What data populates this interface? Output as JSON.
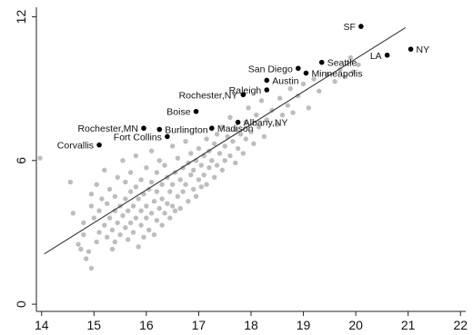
{
  "chart_data": {
    "type": "scatter",
    "title": "",
    "xlabel": "",
    "ylabel": "",
    "xlim": [
      13.9,
      22.1
    ],
    "ylim": [
      -0.3,
      12.4
    ],
    "x_ticks": [
      14,
      15,
      16,
      17,
      18,
      19,
      20,
      21,
      22
    ],
    "x_tick_labels": [
      "14",
      "15",
      "16",
      "17",
      "18",
      "19",
      "20",
      "21",
      "22"
    ],
    "y_ticks": [
      0,
      6,
      12
    ],
    "y_tick_labels": [
      "0",
      "6",
      "12"
    ],
    "grid": false,
    "fit_line": {
      "x": [
        14.05,
        20.95
      ],
      "y": [
        2.1,
        11.55
      ]
    },
    "labeled_points": [
      {
        "name": "SF",
        "x": 20.1,
        "y": 11.6
      },
      {
        "name": "NY",
        "x": 21.05,
        "y": 10.65
      },
      {
        "name": "LA",
        "x": 20.6,
        "y": 10.4
      },
      {
        "name": "Seattle",
        "x": 19.35,
        "y": 10.1
      },
      {
        "name": "San Diego",
        "x": 18.9,
        "y": 9.85
      },
      {
        "name": "Minneapolis",
        "x": 19.05,
        "y": 9.65
      },
      {
        "name": "Austin",
        "x": 18.3,
        "y": 9.35
      },
      {
        "name": "Raleigh",
        "x": 18.3,
        "y": 8.95
      },
      {
        "name": "Rochester,NY",
        "x": 17.85,
        "y": 8.75
      },
      {
        "name": "Boise",
        "x": 16.95,
        "y": 8.05
      },
      {
        "name": "Albany,NY",
        "x": 17.75,
        "y": 7.6
      },
      {
        "name": "Rochester,MN",
        "x": 15.95,
        "y": 7.35
      },
      {
        "name": "Burlington",
        "x": 16.25,
        "y": 7.3
      },
      {
        "name": "Madison",
        "x": 17.25,
        "y": 7.35
      },
      {
        "name": "Fort Collins",
        "x": 16.4,
        "y": 7.0
      },
      {
        "name": "Corvallis",
        "x": 15.1,
        "y": 6.65
      }
    ],
    "unlabeled_points": [
      [
        13.97,
        6.1
      ],
      [
        14.55,
        5.1
      ],
      [
        14.6,
        3.8
      ],
      [
        14.7,
        2.5
      ],
      [
        14.75,
        2.3
      ],
      [
        14.8,
        2.9
      ],
      [
        14.8,
        3.4
      ],
      [
        14.85,
        1.9
      ],
      [
        14.9,
        2.2
      ],
      [
        14.95,
        1.5
      ],
      [
        14.95,
        4.1
      ],
      [
        14.95,
        4.6
      ],
      [
        15.0,
        3.6
      ],
      [
        15.05,
        2.6
      ],
      [
        15.05,
        5.0
      ],
      [
        15.1,
        3.0
      ],
      [
        15.1,
        3.9
      ],
      [
        15.15,
        4.4
      ],
      [
        15.2,
        3.3
      ],
      [
        15.2,
        5.6
      ],
      [
        15.25,
        2.8
      ],
      [
        15.25,
        4.2
      ],
      [
        15.3,
        3.6
      ],
      [
        15.3,
        4.8
      ],
      [
        15.35,
        2.3
      ],
      [
        15.35,
        3.1
      ],
      [
        15.4,
        2.6
      ],
      [
        15.4,
        3.9
      ],
      [
        15.4,
        4.5
      ],
      [
        15.45,
        3.4
      ],
      [
        15.45,
        5.3
      ],
      [
        15.5,
        2.9
      ],
      [
        15.5,
        4.1
      ],
      [
        15.55,
        3.7
      ],
      [
        15.55,
        6.0
      ],
      [
        15.6,
        3.2
      ],
      [
        15.6,
        4.4
      ],
      [
        15.6,
        5.1
      ],
      [
        15.65,
        2.7
      ],
      [
        15.65,
        3.9
      ],
      [
        15.7,
        3.4
      ],
      [
        15.7,
        4.7
      ],
      [
        15.7,
        5.5
      ],
      [
        15.75,
        3.0
      ],
      [
        15.75,
        4.1
      ],
      [
        15.8,
        3.6
      ],
      [
        15.8,
        4.9
      ],
      [
        15.8,
        6.2
      ],
      [
        15.85,
        2.4
      ],
      [
        15.85,
        4.4
      ],
      [
        15.9,
        3.3
      ],
      [
        15.9,
        3.9
      ],
      [
        15.9,
        5.2
      ],
      [
        15.95,
        4.6
      ],
      [
        15.95,
        2.8
      ],
      [
        16.0,
        3.6
      ],
      [
        16.0,
        4.1
      ],
      [
        16.0,
        5.7
      ],
      [
        16.05,
        3.1
      ],
      [
        16.05,
        4.8
      ],
      [
        16.1,
        3.8
      ],
      [
        16.1,
        5.1
      ],
      [
        16.1,
        6.4
      ],
      [
        16.15,
        4.3
      ],
      [
        16.15,
        2.9
      ],
      [
        16.2,
        3.5
      ],
      [
        16.2,
        4.7
      ],
      [
        16.2,
        5.5
      ],
      [
        16.25,
        4.0
      ],
      [
        16.25,
        6.0
      ],
      [
        16.3,
        3.3
      ],
      [
        16.3,
        4.4
      ],
      [
        16.3,
        5.0
      ],
      [
        16.35,
        5.8
      ],
      [
        16.35,
        3.8
      ],
      [
        16.4,
        4.2
      ],
      [
        16.4,
        5.3
      ],
      [
        16.45,
        4.7
      ],
      [
        16.45,
        3.6
      ],
      [
        16.5,
        5.0
      ],
      [
        16.5,
        6.6
      ],
      [
        16.5,
        4.1
      ],
      [
        16.55,
        5.5
      ],
      [
        16.55,
        3.9
      ],
      [
        16.6,
        4.5
      ],
      [
        16.6,
        6.1
      ],
      [
        16.65,
        5.2
      ],
      [
        16.65,
        4.0
      ],
      [
        16.7,
        5.7
      ],
      [
        16.7,
        4.7
      ],
      [
        16.75,
        6.8
      ],
      [
        16.75,
        5.0
      ],
      [
        16.8,
        4.3
      ],
      [
        16.8,
        5.9
      ],
      [
        16.85,
        5.4
      ],
      [
        16.85,
        6.3
      ],
      [
        16.9,
        4.8
      ],
      [
        16.9,
        5.6
      ],
      [
        16.95,
        6.0
      ],
      [
        16.95,
        4.5
      ],
      [
        17.0,
        5.2
      ],
      [
        17.0,
        6.5
      ],
      [
        17.05,
        5.8
      ],
      [
        17.05,
        4.9
      ],
      [
        17.1,
        6.2
      ],
      [
        17.1,
        5.4
      ],
      [
        17.15,
        6.9
      ],
      [
        17.15,
        5.0
      ],
      [
        17.2,
        5.7
      ],
      [
        17.2,
        6.4
      ],
      [
        17.25,
        6.0
      ],
      [
        17.3,
        5.3
      ],
      [
        17.3,
        6.7
      ],
      [
        17.35,
        7.1
      ],
      [
        17.35,
        5.8
      ],
      [
        17.4,
        6.3
      ],
      [
        17.45,
        5.6
      ],
      [
        17.45,
        7.4
      ],
      [
        17.5,
        6.6
      ],
      [
        17.5,
        6.0
      ],
      [
        17.55,
        7.0
      ],
      [
        17.6,
        6.2
      ],
      [
        17.6,
        7.8
      ],
      [
        17.65,
        6.8
      ],
      [
        17.7,
        5.9
      ],
      [
        17.7,
        7.3
      ],
      [
        17.75,
        6.5
      ],
      [
        17.8,
        7.1
      ],
      [
        17.85,
        6.3
      ],
      [
        17.9,
        7.6
      ],
      [
        17.9,
        6.9
      ],
      [
        17.95,
        8.2
      ],
      [
        18.0,
        7.2
      ],
      [
        18.05,
        6.7
      ],
      [
        18.1,
        7.9
      ],
      [
        18.15,
        7.4
      ],
      [
        18.2,
        8.5
      ],
      [
        18.25,
        7.0
      ],
      [
        18.3,
        7.7
      ],
      [
        18.4,
        8.1
      ],
      [
        18.5,
        7.5
      ],
      [
        18.55,
        8.6
      ],
      [
        18.6,
        7.9
      ],
      [
        18.7,
        8.3
      ],
      [
        18.75,
        9.0
      ],
      [
        18.8,
        8.0
      ],
      [
        18.9,
        8.7
      ],
      [
        19.0,
        9.2
      ],
      [
        19.1,
        8.2
      ],
      [
        19.2,
        9.4
      ],
      [
        19.3,
        8.9
      ],
      [
        19.45,
        9.6
      ],
      [
        19.6,
        9.3
      ],
      [
        19.7,
        9.8
      ],
      [
        19.8,
        9.5
      ],
      [
        19.9,
        10.3
      ],
      [
        19.95,
        9.7
      ],
      [
        20.05,
        10.0
      ]
    ]
  }
}
